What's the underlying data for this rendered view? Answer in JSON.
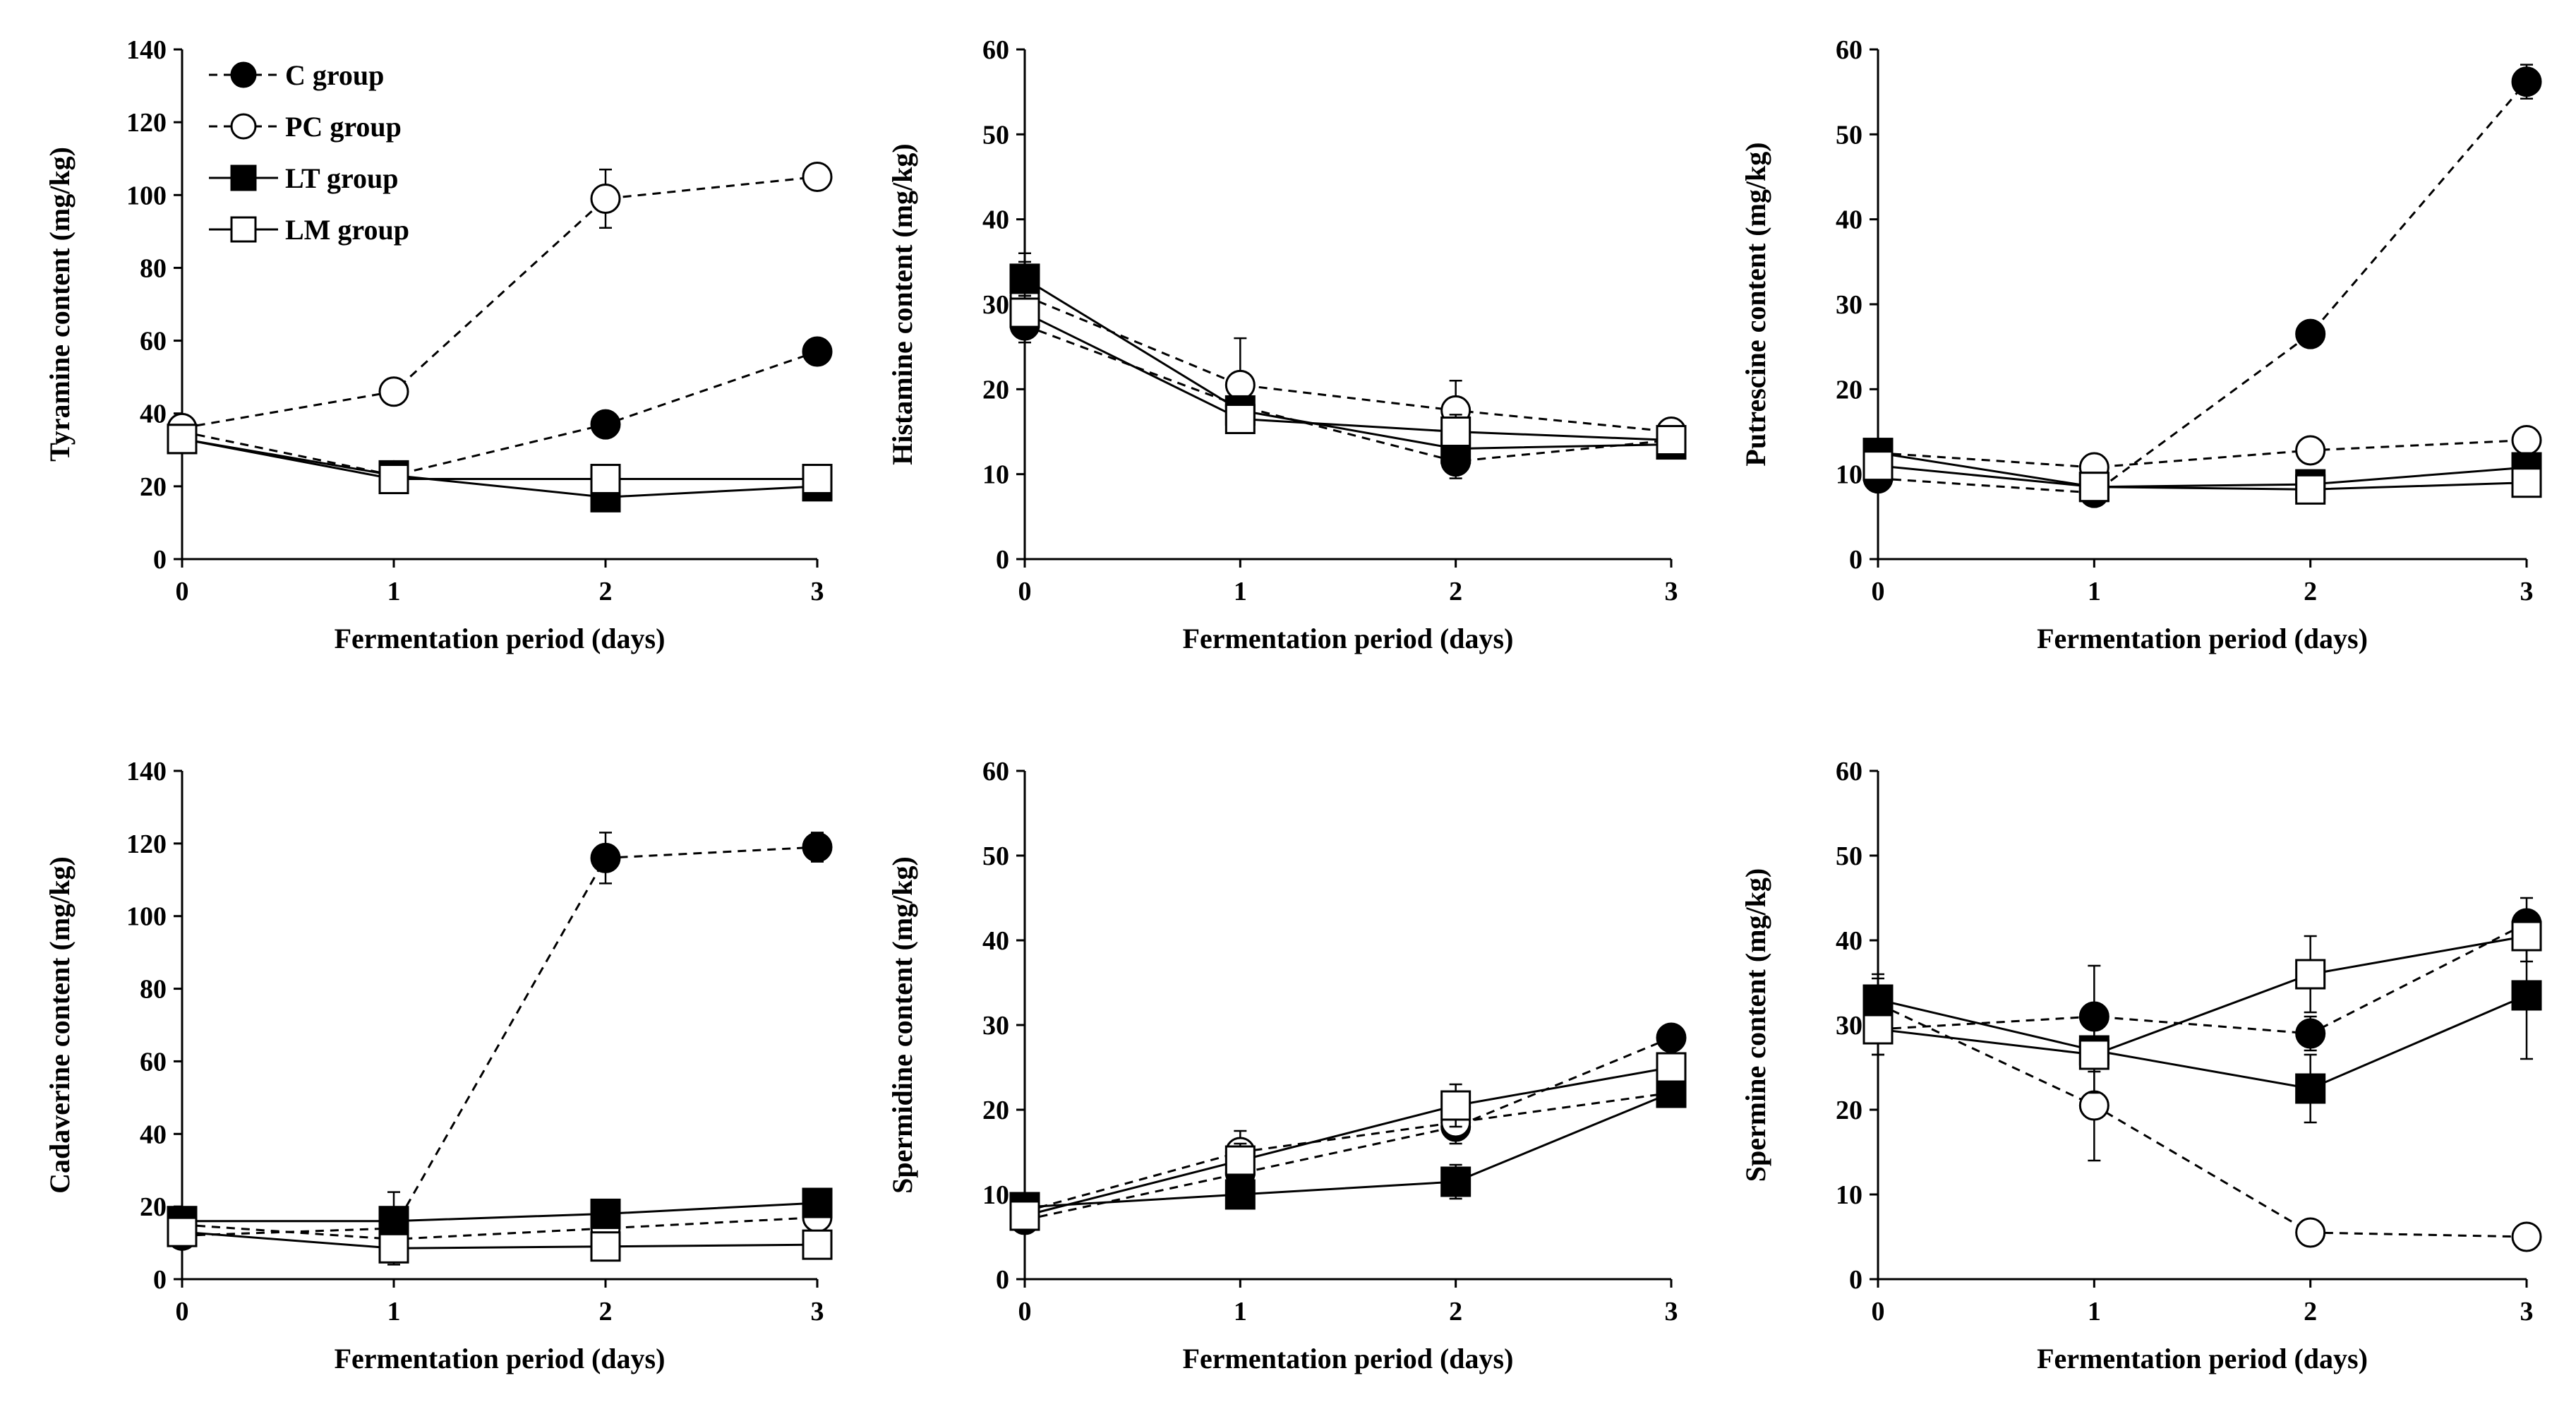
{
  "legend": [
    {
      "key": "C",
      "label": "C group",
      "marker": "filled-circle",
      "dash": true
    },
    {
      "key": "PC",
      "label": "PC group",
      "marker": "open-circle",
      "dash": true
    },
    {
      "key": "LT",
      "label": "LT group",
      "marker": "filled-square",
      "dash": false
    },
    {
      "key": "LM",
      "label": "LM group",
      "marker": "open-square",
      "dash": false
    }
  ],
  "chart_data": [
    {
      "type": "line",
      "xlabel": "Fermentation period (days)",
      "ylabel": "Tyramine content (mg/kg)",
      "x": [
        0,
        1,
        2,
        3
      ],
      "xlim": [
        0,
        3
      ],
      "ylim": [
        0,
        140
      ],
      "yticks": [
        0,
        20,
        40,
        60,
        80,
        100,
        120,
        140
      ],
      "series": [
        {
          "name": "C group",
          "values": [
            35,
            23,
            37,
            57
          ],
          "errors": [
            2,
            1,
            2,
            2
          ]
        },
        {
          "name": "PC group",
          "values": [
            36,
            46,
            99,
            105
          ],
          "errors": [
            2,
            2,
            8,
            2
          ]
        },
        {
          "name": "LT group",
          "values": [
            33,
            23,
            17,
            20
          ],
          "errors": [
            1,
            1,
            1,
            1
          ]
        },
        {
          "name": "LM group",
          "values": [
            33,
            22,
            22,
            22
          ],
          "errors": [
            1,
            1,
            3,
            1
          ]
        }
      ]
    },
    {
      "type": "line",
      "xlabel": "Fermentation period (days)",
      "ylabel": "Histamine content (mg/kg)",
      "x": [
        0,
        1,
        2,
        3
      ],
      "xlim": [
        0,
        3
      ],
      "ylim": [
        0,
        60
      ],
      "yticks": [
        0,
        10,
        20,
        30,
        40,
        50,
        60
      ],
      "series": [
        {
          "name": "C group",
          "values": [
            27.5,
            18,
            11.5,
            14
          ],
          "errors": [
            2,
            1.5,
            2,
            1
          ]
        },
        {
          "name": "PC group",
          "values": [
            31,
            20.5,
            17.5,
            15
          ],
          "errors": [
            5,
            5.5,
            3.5,
            1
          ]
        },
        {
          "name": "LT group",
          "values": [
            33,
            17.5,
            13,
            13.5
          ],
          "errors": [
            2,
            1.5,
            2,
            1
          ]
        },
        {
          "name": "LM group",
          "values": [
            29,
            16.5,
            15,
            14
          ],
          "errors": [
            2,
            1.5,
            2,
            1
          ]
        }
      ]
    },
    {
      "type": "line",
      "xlabel": "Fermentation period (days)",
      "ylabel": "Putrescine content (mg/kg)",
      "x": [
        0,
        1,
        2,
        3
      ],
      "xlim": [
        0,
        3
      ],
      "ylim": [
        0,
        60
      ],
      "yticks": [
        0,
        10,
        20,
        30,
        40,
        50,
        60
      ],
      "series": [
        {
          "name": "C group",
          "values": [
            9.5,
            7.8,
            26.5,
            56.2
          ],
          "errors": [
            0.8,
            0.6,
            0.8,
            2
          ]
        },
        {
          "name": "PC group",
          "values": [
            12.5,
            10.8,
            12.8,
            14
          ],
          "errors": [
            0.8,
            0.8,
            0.8,
            0.8
          ]
        },
        {
          "name": "LT group",
          "values": [
            12.5,
            8.5,
            8.8,
            10.8
          ],
          "errors": [
            0.8,
            0.6,
            0.8,
            1
          ]
        },
        {
          "name": "LM group",
          "values": [
            11,
            8.5,
            8.2,
            9
          ],
          "errors": [
            0.8,
            0.6,
            0.6,
            0.8
          ]
        }
      ]
    },
    {
      "type": "line",
      "xlabel": "Fermentation period (days)",
      "ylabel": "Cadaverine content (mg/kg)",
      "x": [
        0,
        1,
        2,
        3
      ],
      "xlim": [
        0,
        3
      ],
      "ylim": [
        0,
        140
      ],
      "yticks": [
        0,
        20,
        40,
        60,
        80,
        100,
        120,
        140
      ],
      "series": [
        {
          "name": "C group",
          "values": [
            12,
            14,
            116,
            119
          ],
          "errors": [
            2,
            10,
            7,
            4
          ]
        },
        {
          "name": "PC group",
          "values": [
            15,
            11,
            14,
            17
          ],
          "errors": [
            2,
            2,
            2,
            2
          ]
        },
        {
          "name": "LT group",
          "values": [
            16,
            16,
            18,
            21
          ],
          "errors": [
            2,
            3,
            2,
            2
          ]
        },
        {
          "name": "LM group",
          "values": [
            13,
            8.5,
            9,
            9.5
          ],
          "errors": [
            2,
            2,
            2,
            2
          ]
        }
      ]
    },
    {
      "type": "line",
      "xlabel": "Fermentation period (days)",
      "ylabel": "Spermidine content (mg/kg)",
      "x": [
        0,
        1,
        2,
        3
      ],
      "xlim": [
        0,
        3
      ],
      "ylim": [
        0,
        60
      ],
      "yticks": [
        0,
        10,
        20,
        30,
        40,
        50,
        60
      ],
      "series": [
        {
          "name": "C group",
          "values": [
            7,
            12.5,
            18,
            28.5
          ],
          "errors": [
            1,
            1.5,
            2,
            1.5
          ]
        },
        {
          "name": "PC group",
          "values": [
            8,
            15,
            18.5,
            22
          ],
          "errors": [
            1,
            2.5,
            2,
            1
          ]
        },
        {
          "name": "LT group",
          "values": [
            8.5,
            10,
            11.5,
            22
          ],
          "errors": [
            1,
            1,
            2,
            1
          ]
        },
        {
          "name": "LM group",
          "values": [
            7.5,
            14,
            20.5,
            25
          ],
          "errors": [
            1,
            2,
            2.5,
            1.5
          ]
        }
      ]
    },
    {
      "type": "line",
      "xlabel": "Fermentation period (days)",
      "ylabel": "Spermine content (mg/kg)",
      "x": [
        0,
        1,
        2,
        3
      ],
      "xlim": [
        0,
        3
      ],
      "ylim": [
        0,
        60
      ],
      "yticks": [
        0,
        10,
        20,
        30,
        40,
        50,
        60
      ],
      "series": [
        {
          "name": "C group",
          "values": [
            29.5,
            31,
            29,
            42
          ],
          "errors": [
            3,
            6,
            2,
            3
          ]
        },
        {
          "name": "PC group",
          "values": [
            32.5,
            20.5,
            5.5,
            5
          ],
          "errors": [
            3,
            6.5,
            1,
            0.8
          ]
        },
        {
          "name": "LT group",
          "values": [
            33,
            27,
            22.5,
            33.5
          ],
          "errors": [
            3,
            5,
            4,
            7.5
          ]
        },
        {
          "name": "LM group",
          "values": [
            29.5,
            26.5,
            36,
            40.5
          ],
          "errors": [
            3,
            2,
            4.5,
            3
          ]
        }
      ]
    }
  ]
}
